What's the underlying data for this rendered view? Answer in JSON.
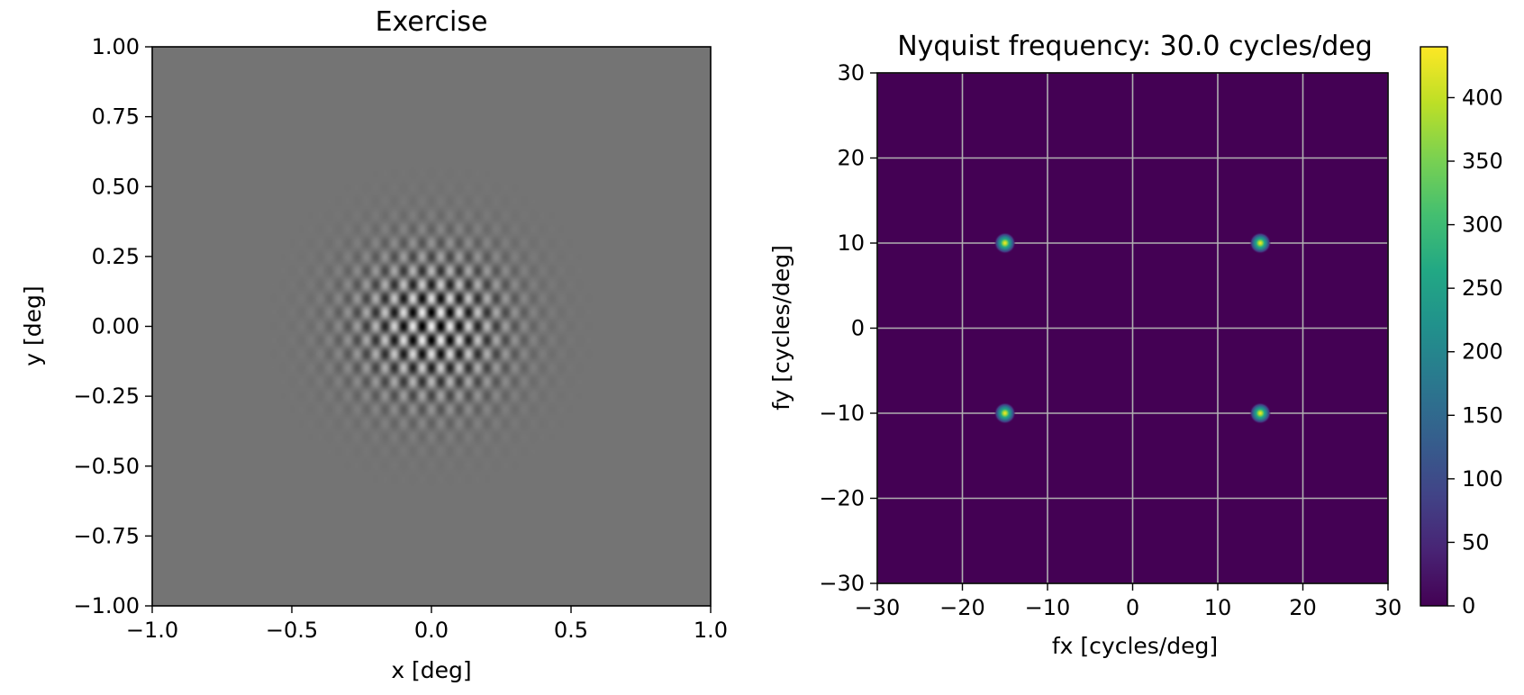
{
  "figure": {
    "left": {
      "title": "Exercise",
      "xlabel": "x [deg]",
      "ylabel": "y [deg]"
    },
    "right": {
      "title": "Nyquist frequency: 30.0 cycles/deg",
      "xlabel": "fx [cycles/deg]",
      "ylabel": "fy [cycles/deg]",
      "colorbar_ticks": [
        "0",
        "50",
        "100",
        "150",
        "200",
        "250",
        "300",
        "350",
        "400"
      ]
    }
  },
  "chart_data": [
    {
      "type": "heatmap",
      "title": "Exercise",
      "xlabel": "x [deg]",
      "ylabel": "y [deg]",
      "xlim": [
        -1.0,
        1.0
      ],
      "ylim": [
        -1.0,
        1.0
      ],
      "xticks": [
        -1.0,
        -0.5,
        0.0,
        0.5,
        1.0
      ],
      "xtick_labels": [
        "−1.0",
        "−0.5",
        "0.0",
        "0.5",
        "1.0"
      ],
      "yticks": [
        1.0,
        0.75,
        0.5,
        0.25,
        0.0,
        -0.25,
        -0.5,
        -0.75,
        -1.0
      ],
      "ytick_labels": [
        "1.00",
        "0.75",
        "0.50",
        "0.25",
        "0.00",
        "−0.25",
        "−0.50",
        "−0.75",
        "−1.00"
      ],
      "colormap": "gray",
      "stimulus": {
        "kind": "gabor-plaid",
        "components_cycles_per_deg": [
          [
            15,
            10
          ],
          [
            15,
            -10
          ]
        ],
        "gaussian_sigma_deg": 0.18
      },
      "grid": false
    },
    {
      "type": "heatmap",
      "title": "Nyquist frequency: 30.0 cycles/deg",
      "xlabel": "fx [cycles/deg]",
      "ylabel": "fy [cycles/deg]",
      "xlim": [
        -30,
        30
      ],
      "ylim": [
        -30,
        30
      ],
      "xticks": [
        -30,
        -20,
        -10,
        0,
        10,
        20,
        30
      ],
      "xtick_labels": [
        "−30",
        "−20",
        "−10",
        "0",
        "10",
        "20",
        "30"
      ],
      "yticks": [
        30,
        20,
        10,
        0,
        -10,
        -20,
        -30
      ],
      "ytick_labels": [
        "30",
        "20",
        "10",
        "0",
        "−10",
        "−20",
        "−30"
      ],
      "colormap": "viridis",
      "vmin": 0,
      "vmax": 440,
      "peaks": [
        {
          "fx": -15,
          "fy": 10,
          "value": 440
        },
        {
          "fx": 15,
          "fy": 10,
          "value": 440
        },
        {
          "fx": -15,
          "fy": -10,
          "value": 440
        },
        {
          "fx": 15,
          "fy": -10,
          "value": 440
        }
      ],
      "grid": true,
      "colorbar": {
        "ticks": [
          0,
          50,
          100,
          150,
          200,
          250,
          300,
          350,
          400
        ],
        "tick_labels": [
          "0",
          "50",
          "100",
          "150",
          "200",
          "250",
          "300",
          "350",
          "400"
        ]
      }
    }
  ]
}
